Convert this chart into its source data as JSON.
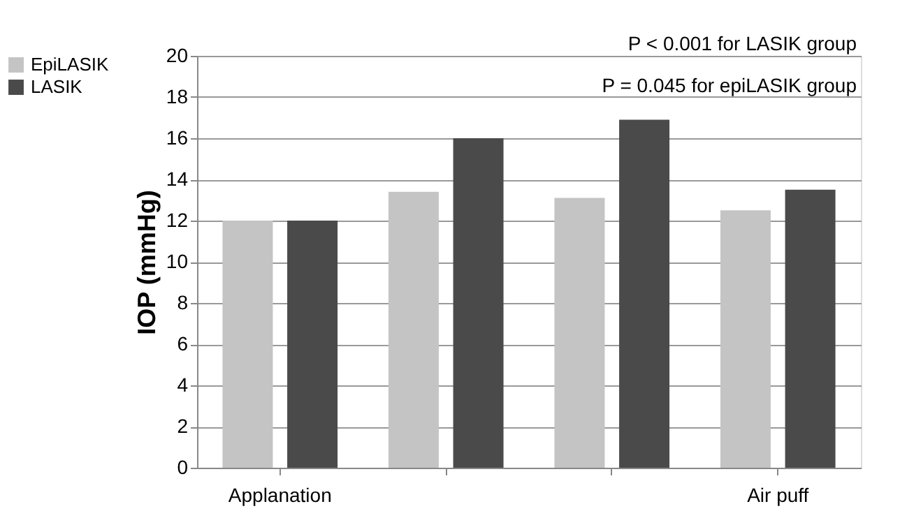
{
  "chart_data": {
    "type": "bar",
    "ylabel": "IOP (mmHg)",
    "categories": [
      "Applanation",
      null,
      null,
      "Air puff"
    ],
    "series": [
      {
        "name": "EpiLASIK",
        "color": "#c4c4c4",
        "values": [
          12,
          13.4,
          13.1,
          12.5
        ]
      },
      {
        "name": "LASIK",
        "color": "#4a4a4a",
        "values": [
          12,
          16,
          16.9,
          13.5
        ]
      }
    ],
    "ylim": [
      0,
      20
    ],
    "yticks": [
      0,
      2,
      4,
      6,
      8,
      10,
      12,
      14,
      16,
      18,
      20
    ],
    "grid": "y",
    "legend": "left",
    "annotations": [
      "P < 0.001 for LASIK group",
      "P = 0.045 for epiLASIK group"
    ]
  }
}
